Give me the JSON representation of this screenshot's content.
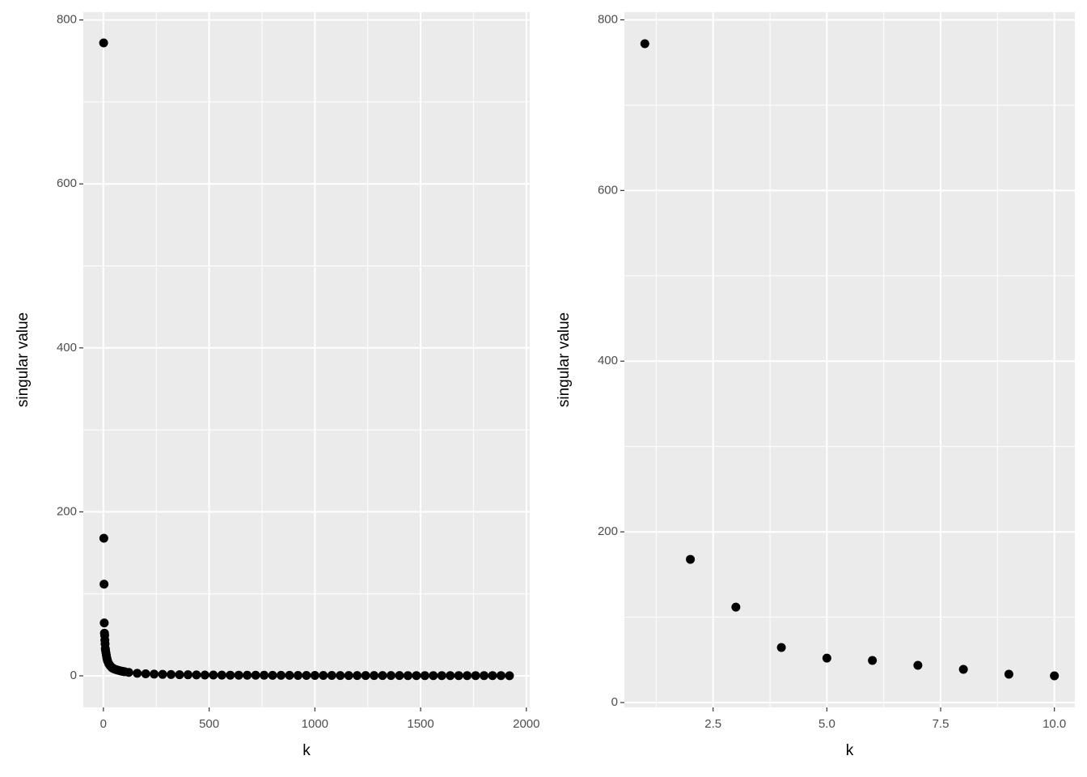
{
  "chart_data": [
    {
      "type": "scatter",
      "x_label": "k",
      "y_label": "singular value",
      "color": "#000000",
      "grid": true,
      "xlim": [
        -95,
        2016
      ],
      "ylim": [
        -38.5,
        809.5
      ],
      "xticks": [
        0,
        500,
        1000,
        1500,
        2000
      ],
      "yticks": [
        0,
        200,
        400,
        600,
        800
      ],
      "x": [
        1,
        2,
        3,
        4,
        5,
        6,
        7,
        8,
        9,
        10,
        12,
        14,
        16,
        18,
        20,
        25,
        30,
        35,
        40,
        45,
        50,
        60,
        70,
        80,
        90,
        100,
        120,
        160,
        200,
        240,
        280,
        320,
        360,
        400,
        440,
        480,
        520,
        560,
        600,
        640,
        680,
        720,
        760,
        800,
        840,
        880,
        920,
        960,
        1000,
        1040,
        1080,
        1120,
        1160,
        1200,
        1240,
        1280,
        1320,
        1360,
        1400,
        1440,
        1480,
        1520,
        1560,
        1600,
        1640,
        1680,
        1720,
        1760,
        1800,
        1840,
        1880,
        1920
      ],
      "values": [
        772,
        167.8,
        111.8,
        64.5,
        52,
        49.3,
        43.6,
        38.9,
        33.2,
        31.3,
        28,
        25,
        22,
        20,
        18,
        15,
        13,
        11.5,
        10,
        9.2,
        8.5,
        7.5,
        6.8,
        6.0,
        5.5,
        5.0,
        4.2,
        3.1,
        2.5,
        2.1,
        1.8,
        1.6,
        1.4,
        1.3,
        1.1,
        1.0,
        1.0,
        0.9,
        0.8,
        0.8,
        0.7,
        0.7,
        0.7,
        0.6,
        0.6,
        0.6,
        0.5,
        0.5,
        0.5,
        0.5,
        0.5,
        0.4,
        0.4,
        0.4,
        0.4,
        0.4,
        0.4,
        0.4,
        0.4,
        0.3,
        0.3,
        0.3,
        0.3,
        0.3,
        0.3,
        0.3,
        0.3,
        0.3,
        0.3,
        0.3,
        0.3,
        0.1
      ]
    },
    {
      "type": "scatter",
      "x_label": "k",
      "y_label": "singular value",
      "color": "#000000",
      "grid": true,
      "xlim": [
        0.55,
        10.45
      ],
      "ylim": [
        -5.7,
        809
      ],
      "xticks": [
        2.5,
        {
          "value": 5,
          "label": "5.0"
        },
        7.5,
        {
          "value": 10,
          "label": "10.0"
        }
      ],
      "yticks": [
        0,
        200,
        400,
        600,
        800
      ],
      "x": [
        1,
        2,
        3,
        4,
        5,
        6,
        7,
        8,
        9,
        10
      ],
      "values": [
        772,
        167.8,
        111.8,
        64.5,
        52,
        49.3,
        43.6,
        38.9,
        33.2,
        31.3
      ]
    }
  ]
}
